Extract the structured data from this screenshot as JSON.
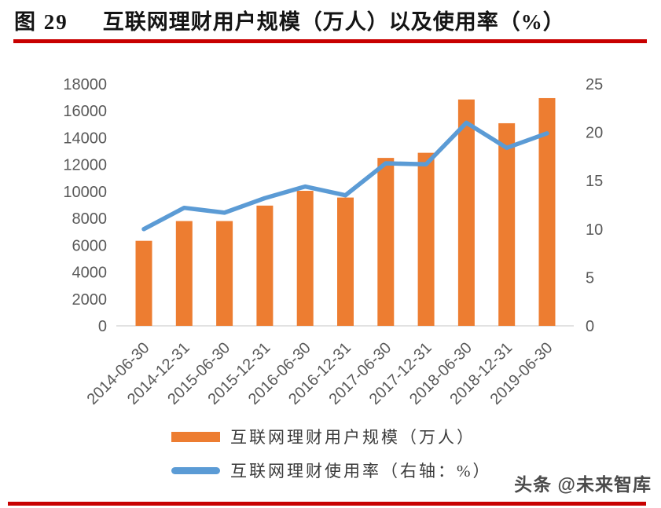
{
  "header": {
    "figure_label": "图 29",
    "title": "互联网理财用户规模（万人）以及使用率（%）"
  },
  "watermark": "头条 @未来智库",
  "colors": {
    "bar": "#ED7D31",
    "line": "#5B9BD5",
    "accent_rule": "#C80000",
    "axis_text": "#595959",
    "baseline": "#D9D9D9",
    "legend_text": "#3A3A3A"
  },
  "chart_data": {
    "type": "bar",
    "subtype": "combo-bar-line",
    "title": "互联网理财用户规模（万人）以及使用率（%）",
    "categories": [
      "2014-06-30",
      "2014-12-31",
      "2015-06-30",
      "2015-12-31",
      "2016-06-30",
      "2016-12-31",
      "2017-06-30",
      "2017-12-31",
      "2018-06-30",
      "2018-12-31",
      "2019-06-30"
    ],
    "series": [
      {
        "name": "互联网理财用户规模（万人）",
        "type": "bar",
        "axis": "left",
        "color": "#ED7D31",
        "values": [
          6330,
          7800,
          7800,
          8950,
          10050,
          9550,
          12500,
          12880,
          16850,
          15080,
          16950
        ]
      },
      {
        "name": "互联网理财使用率（右轴：%）",
        "type": "line",
        "axis": "right",
        "color": "#5B9BD5",
        "values": [
          10.0,
          12.2,
          11.7,
          13.2,
          14.4,
          13.5,
          16.8,
          16.7,
          21.0,
          18.4,
          19.9
        ]
      }
    ],
    "left_axis": {
      "min": 0,
      "max": 18000,
      "step": 2000,
      "ticks": [
        0,
        2000,
        4000,
        6000,
        8000,
        10000,
        12000,
        14000,
        16000,
        18000
      ]
    },
    "right_axis": {
      "min": 0,
      "max": 25,
      "step": 5,
      "ticks": [
        0,
        5,
        10,
        15,
        20,
        25
      ]
    },
    "grid": false,
    "legend_position": "bottom",
    "x_label_rotation_deg": -45
  }
}
